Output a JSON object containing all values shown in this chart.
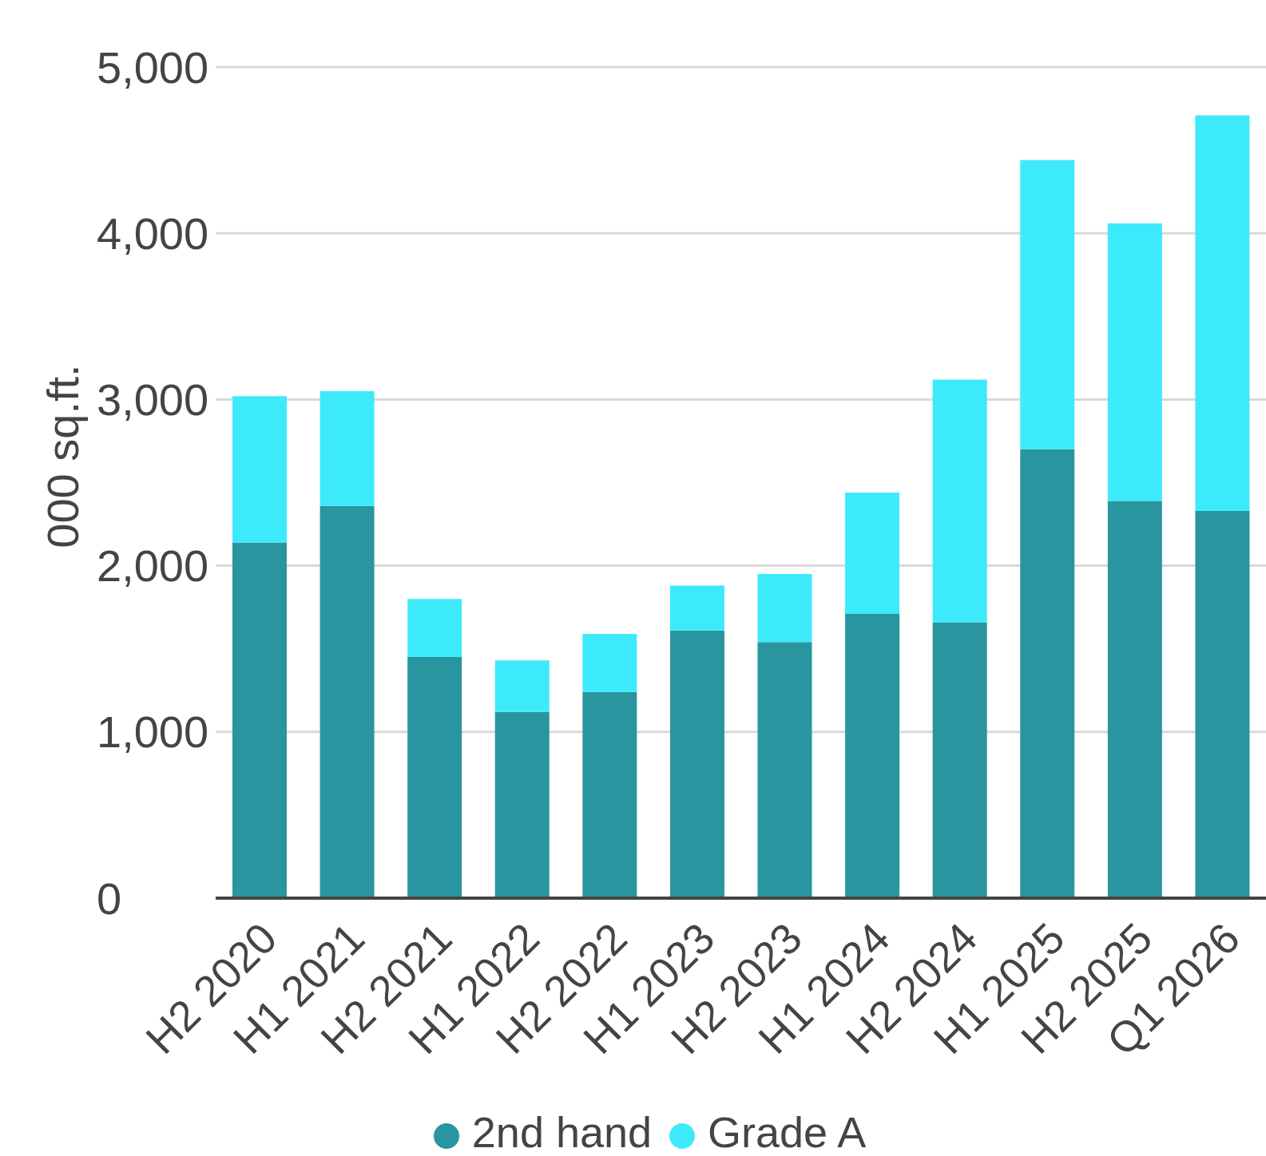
{
  "chart_data": {
    "type": "bar",
    "stacked": true,
    "ylabel": "000 sq.ft.",
    "categories": [
      "H2 2020",
      "H1 2021",
      "H2 2021",
      "H1 2022",
      "H2 2022",
      "H1 2023",
      "H2 2023",
      "H1 2024",
      "H2 2024",
      "H1 2025",
      "H2 2025",
      "Q1 2026"
    ],
    "series": [
      {
        "name": "2nd hand",
        "color": "#29959e",
        "values": [
          2140,
          2360,
          1450,
          1120,
          1240,
          1610,
          1540,
          1710,
          1660,
          2700,
          2390,
          2330
        ]
      },
      {
        "name": "Grade A",
        "color": "#3deafb",
        "values": [
          880,
          690,
          350,
          310,
          350,
          270,
          410,
          730,
          1460,
          1740,
          1670,
          2380
        ]
      }
    ],
    "ylim": [
      0,
      5000
    ],
    "yticks": [
      0,
      {
        "value": 1000,
        "label": "1,000"
      },
      {
        "value": 2000,
        "label": "2,000"
      },
      {
        "value": 3000,
        "label": "3,000"
      },
      {
        "value": 4000,
        "label": "4,000"
      },
      {
        "value": 5000,
        "label": "5,000"
      }
    ],
    "grid": "y",
    "legend": "bottom"
  }
}
